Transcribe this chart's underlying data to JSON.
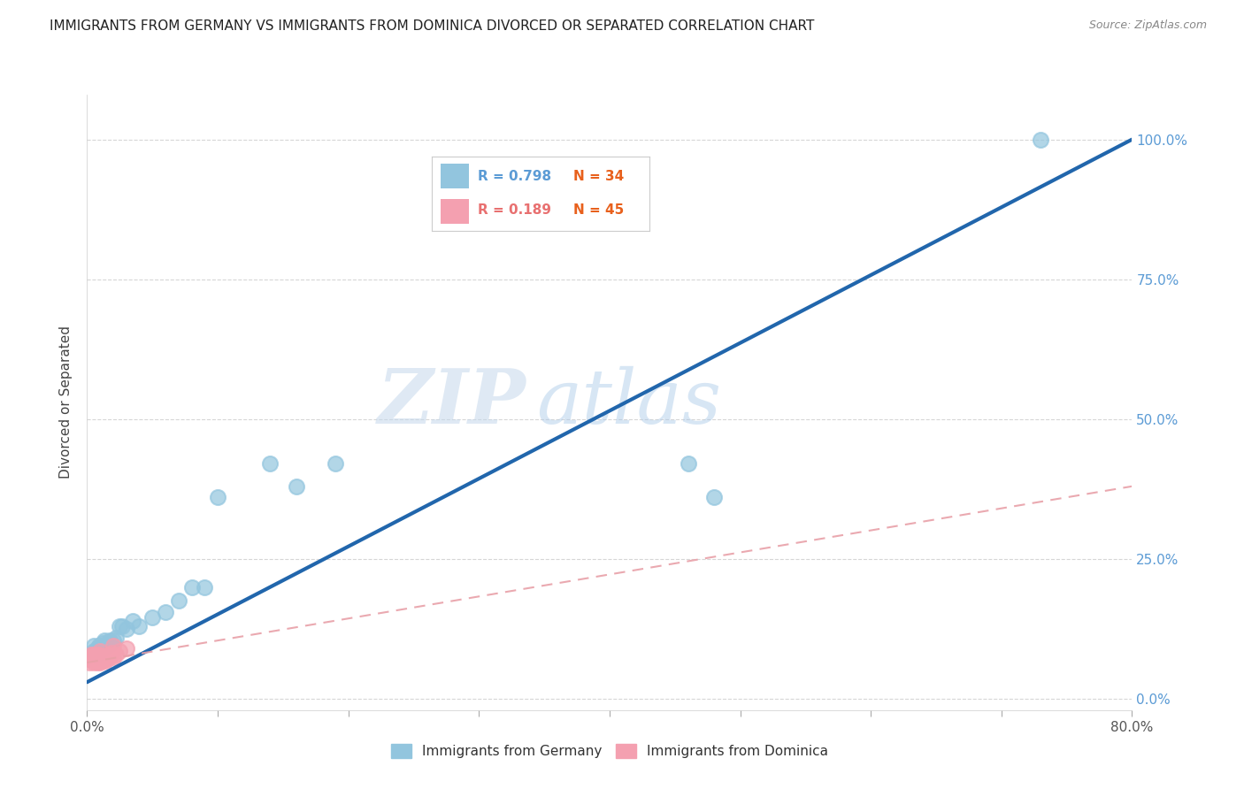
{
  "title": "IMMIGRANTS FROM GERMANY VS IMMIGRANTS FROM DOMINICA DIVORCED OR SEPARATED CORRELATION CHART",
  "source": "Source: ZipAtlas.com",
  "ylabel": "Divorced or Separated",
  "xlim": [
    0.0,
    0.8
  ],
  "ylim": [
    -0.02,
    1.08
  ],
  "xtick_labels": [
    "0.0%",
    "",
    "",
    "",
    "",
    "",
    "",
    "",
    "80.0%"
  ],
  "xtick_vals": [
    0.0,
    0.1,
    0.2,
    0.3,
    0.4,
    0.5,
    0.6,
    0.7,
    0.8
  ],
  "ytick_vals_right": [
    0.0,
    0.25,
    0.5,
    0.75,
    1.0
  ],
  "ytick_labels_right": [
    "0.0%",
    "25.0%",
    "50.0%",
    "75.0%",
    "100.0%"
  ],
  "germany_R": 0.798,
  "germany_N": 34,
  "dominica_R": 0.189,
  "dominica_N": 45,
  "germany_color": "#92C5DE",
  "dominica_color": "#F4A0B0",
  "germany_line_color": "#2166AC",
  "dominica_line_color": "#E8A0A8",
  "watermark_zip": "ZIP",
  "watermark_atlas": "atlas",
  "germany_x": [
    0.005,
    0.005,
    0.007,
    0.008,
    0.009,
    0.01,
    0.01,
    0.011,
    0.012,
    0.013,
    0.014,
    0.015,
    0.016,
    0.017,
    0.018,
    0.02,
    0.022,
    0.025,
    0.027,
    0.03,
    0.035,
    0.04,
    0.05,
    0.06,
    0.07,
    0.08,
    0.09,
    0.1,
    0.14,
    0.16,
    0.19,
    0.46,
    0.48,
    0.73
  ],
  "germany_y": [
    0.085,
    0.095,
    0.08,
    0.09,
    0.095,
    0.085,
    0.095,
    0.09,
    0.1,
    0.105,
    0.095,
    0.095,
    0.1,
    0.105,
    0.1,
    0.105,
    0.11,
    0.13,
    0.13,
    0.125,
    0.14,
    0.13,
    0.145,
    0.155,
    0.175,
    0.2,
    0.2,
    0.36,
    0.42,
    0.38,
    0.42,
    0.42,
    0.36,
    1.0
  ],
  "dominica_x": [
    0.002,
    0.002,
    0.003,
    0.003,
    0.003,
    0.004,
    0.004,
    0.005,
    0.005,
    0.005,
    0.005,
    0.006,
    0.006,
    0.006,
    0.007,
    0.007,
    0.007,
    0.008,
    0.008,
    0.008,
    0.009,
    0.009,
    0.009,
    0.01,
    0.01,
    0.01,
    0.01,
    0.011,
    0.011,
    0.012,
    0.012,
    0.013,
    0.013,
    0.014,
    0.014,
    0.015,
    0.016,
    0.017,
    0.018,
    0.019,
    0.02,
    0.02,
    0.022,
    0.025,
    0.03
  ],
  "dominica_y": [
    0.065,
    0.075,
    0.07,
    0.075,
    0.08,
    0.07,
    0.075,
    0.065,
    0.07,
    0.075,
    0.08,
    0.068,
    0.072,
    0.078,
    0.068,
    0.073,
    0.08,
    0.065,
    0.07,
    0.075,
    0.068,
    0.073,
    0.08,
    0.065,
    0.07,
    0.075,
    0.085,
    0.068,
    0.074,
    0.07,
    0.076,
    0.07,
    0.075,
    0.068,
    0.078,
    0.072,
    0.075,
    0.08,
    0.076,
    0.082,
    0.075,
    0.095,
    0.08,
    0.085,
    0.09
  ],
  "germany_trend": [
    0.0,
    0.8,
    0.03,
    1.0
  ],
  "dominica_trend": [
    0.0,
    0.8,
    0.065,
    0.38
  ],
  "background_color": "#FFFFFF",
  "grid_color": "#CCCCCC",
  "title_color": "#222222",
  "source_color": "#888888",
  "right_axis_color": "#5B9BD5",
  "legend_R_germany_color": "#5B9BD5",
  "legend_N_germany_color": "#E8601C",
  "legend_R_dominica_color": "#E87070",
  "legend_N_dominica_color": "#E8601C"
}
